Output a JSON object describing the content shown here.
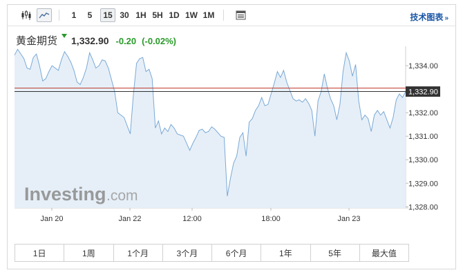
{
  "toolbar": {
    "chart_type_icons": [
      "candlestick-icon",
      "line-chart-icon"
    ],
    "timeframes": [
      "1",
      "5",
      "15",
      "30",
      "1H",
      "5H",
      "1D",
      "1W",
      "1M"
    ],
    "active_timeframe": "15",
    "settings_icon": "table-icon",
    "tech_chart_link": "技术图表",
    "tech_chart_arrow": "»"
  },
  "quote": {
    "name": "黄金期货",
    "price": "1,332.90",
    "change": "-0.20",
    "change_pct": "(-0.02%)",
    "direction": "down",
    "change_color": "#2a9a2a"
  },
  "watermark": {
    "brand": "Investing",
    "suffix": ".com"
  },
  "chart_data": {
    "type": "area",
    "title": "",
    "xlabel": "",
    "ylabel": "",
    "ylim": [
      1327.95,
      1334.65
    ],
    "x_tick_labels": [
      "Jan 20",
      "Jan 22",
      "12:00",
      "18:00",
      "Jan 23"
    ],
    "y_tick_labels": [
      "1,334.00",
      "1,332.00",
      "1,331.00",
      "1,330.00",
      "1,329.00",
      "1,328.00"
    ],
    "y_tick_values": [
      1334,
      1332,
      1331,
      1330,
      1329,
      1328
    ],
    "last_price_label": "1,332.90",
    "last_price": 1332.9,
    "reference_price": 1333.05,
    "line_color": "#7aa9d6",
    "fill_color": "#e6eff8",
    "last_line_color": "#333333",
    "reference_line_color": "#c0392b",
    "values": [
      1334.45,
      1334.7,
      1334.5,
      1334.3,
      1333.9,
      1333.85,
      1334.35,
      1334.5,
      1334.0,
      1333.35,
      1333.45,
      1333.75,
      1334.0,
      1333.9,
      1333.8,
      1334.25,
      1334.6,
      1334.4,
      1334.15,
      1333.8,
      1333.3,
      1333.2,
      1333.5,
      1333.9,
      1334.55,
      1334.25,
      1333.9,
      1334.0,
      1334.25,
      1334.2,
      1333.9,
      1333.4,
      1332.9,
      1332.0,
      1331.9,
      1331.8,
      1331.45,
      1331.1,
      1332.8,
      1334.1,
      1334.3,
      1334.35,
      1333.75,
      1333.85,
      1333.45,
      1331.35,
      1331.65,
      1331.1,
      1331.35,
      1331.2,
      1331.5,
      1331.35,
      1331.1,
      1331.05,
      1331.0,
      1330.7,
      1330.4,
      1330.7,
      1330.95,
      1331.25,
      1331.3,
      1331.15,
      1331.2,
      1331.4,
      1331.3,
      1331.15,
      1331.0,
      1330.95,
      1328.45,
      1329.2,
      1329.85,
      1330.15,
      1330.95,
      1331.15,
      1330.15,
      1331.6,
      1331.75,
      1332.1,
      1332.3,
      1332.65,
      1332.3,
      1332.35,
      1332.8,
      1333.25,
      1333.75,
      1333.5,
      1333.8,
      1333.3,
      1332.95,
      1332.6,
      1332.5,
      1332.55,
      1332.45,
      1332.6,
      1332.4,
      1332.1,
      1331.0,
      1332.5,
      1332.9,
      1333.65,
      1333.05,
      1332.6,
      1332.3,
      1331.7,
      1332.35,
      1333.75,
      1334.55,
      1334.2,
      1333.55,
      1334.05,
      1332.5,
      1331.7,
      1331.9,
      1331.75,
      1331.2,
      1331.9,
      1332.1,
      1331.9,
      1332.05,
      1331.7,
      1331.35,
      1331.8,
      1332.55,
      1332.8,
      1332.65,
      1332.9
    ]
  },
  "ranges": [
    "1日",
    "1周",
    "1个月",
    "3个月",
    "6个月",
    "1年",
    "5年",
    "最大值"
  ]
}
